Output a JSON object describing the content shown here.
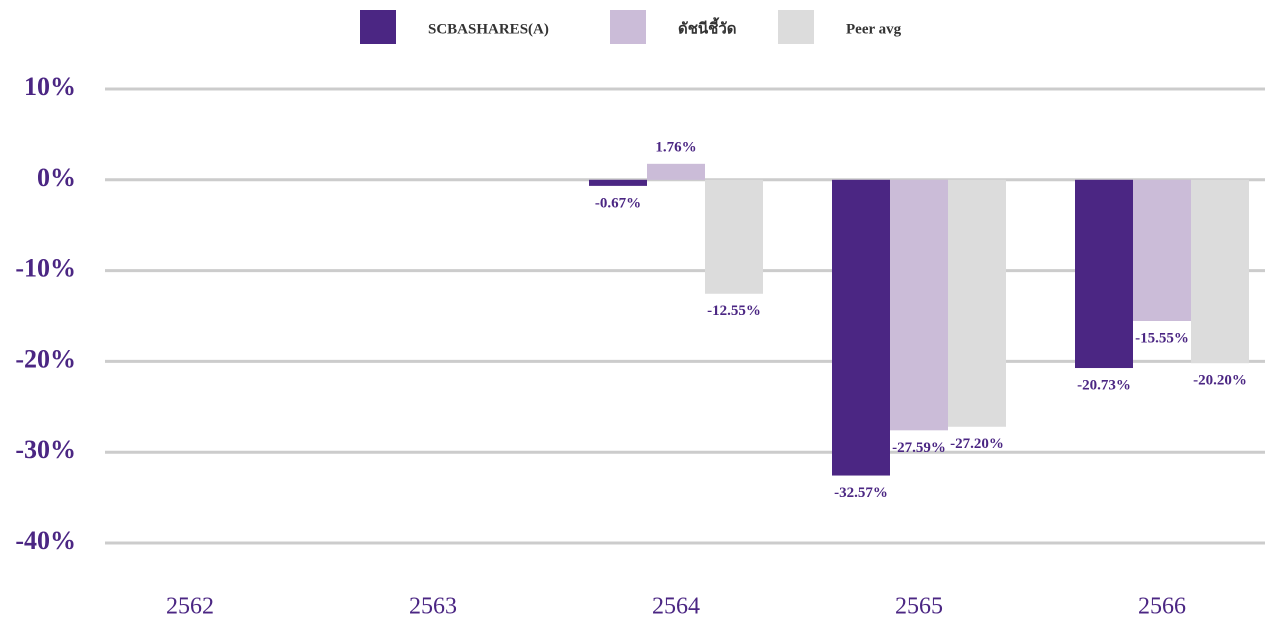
{
  "chart_data": {
    "type": "bar",
    "categories": [
      "2562",
      "2563",
      "2564",
      "2565",
      "2566"
    ],
    "series": [
      {
        "name": "SCBASHARES(A)",
        "color": "#4b2683",
        "values": [
          null,
          null,
          -0.67,
          -32.57,
          -20.73
        ],
        "value_labels": [
          null,
          null,
          "-0.67%",
          "-32.57%",
          "-20.73%"
        ]
      },
      {
        "name": "ดัชนีชี้วัด",
        "color": "#cbbcd8",
        "values": [
          null,
          null,
          1.76,
          -27.59,
          -15.55
        ],
        "value_labels": [
          null,
          null,
          "1.76%",
          "-27.59%",
          "-15.55%"
        ]
      },
      {
        "name": "Peer avg",
        "color": "#dcdcdc",
        "values": [
          null,
          null,
          -12.55,
          -27.2,
          -20.2
        ],
        "value_labels": [
          null,
          null,
          "-12.55%",
          "-27.20%",
          "-20.20%"
        ]
      }
    ],
    "ylim": [
      -40,
      10
    ],
    "yticks": [
      {
        "value": 10,
        "label": "10%"
      },
      {
        "value": 0,
        "label": "0%"
      },
      {
        "value": -10,
        "label": "-10%"
      },
      {
        "value": -20,
        "label": "-20%"
      },
      {
        "value": -30,
        "label": "-30%"
      },
      {
        "value": -40,
        "label": "-40%"
      }
    ],
    "grid": true,
    "legend": "top"
  }
}
